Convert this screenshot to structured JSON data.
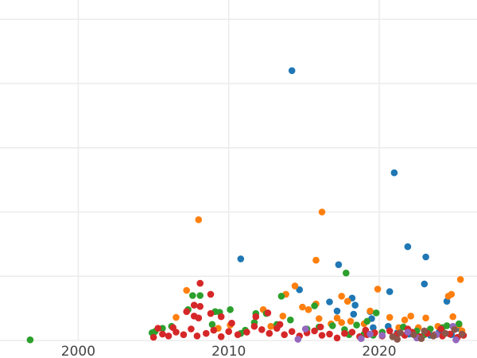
{
  "chart_data": {
    "type": "scatter",
    "title": "",
    "xlabel": "",
    "ylabel": "",
    "xlim": [
      1994.8,
      2026.5
    ],
    "ylim": [
      0,
      530
    ],
    "x_ticks": [
      2000,
      2010,
      2020
    ],
    "x_tick_labels": [
      "2000",
      "2010",
      "2020"
    ],
    "y_gridlines": [
      0,
      100,
      200,
      300,
      400,
      500
    ],
    "grid": true,
    "legend": "none",
    "series": [
      {
        "color": "#1f77b4",
        "points": [
          [
            2014.2,
            420
          ],
          [
            2021.0,
            261
          ],
          [
            2010.8,
            127
          ],
          [
            2021.9,
            146
          ],
          [
            2023.1,
            130
          ],
          [
            2017.3,
            118
          ],
          [
            2020.7,
            76
          ],
          [
            2023.0,
            88
          ],
          [
            2014.7,
            79
          ],
          [
            2016.7,
            60
          ],
          [
            2018.2,
            66
          ],
          [
            2018.4,
            55
          ],
          [
            2024.5,
            61
          ],
          [
            2017.2,
            46
          ],
          [
            2018.3,
            41
          ],
          [
            2019.4,
            45
          ],
          [
            2019.5,
            34
          ],
          [
            2019.6,
            20
          ],
          [
            2020.6,
            22
          ],
          [
            2021.2,
            12
          ],
          [
            2022.0,
            10
          ],
          [
            2023.4,
            8
          ],
          [
            2024.0,
            14
          ],
          [
            2024.8,
            9
          ],
          [
            2025.2,
            19
          ]
        ]
      },
      {
        "color": "#ff7f0e",
        "points": [
          [
            2008.0,
            188
          ],
          [
            2016.2,
            200
          ],
          [
            2015.8,
            125
          ],
          [
            2025.4,
            95
          ],
          [
            2014.4,
            85
          ],
          [
            2019.9,
            80
          ],
          [
            2013.8,
            72
          ],
          [
            2007.2,
            78
          ],
          [
            2017.9,
            61
          ],
          [
            2017.5,
            69
          ],
          [
            2024.6,
            69
          ],
          [
            2024.8,
            72
          ],
          [
            2014.9,
            52
          ],
          [
            2015.3,
            48
          ],
          [
            2015.8,
            57
          ],
          [
            2012.3,
            48
          ],
          [
            2013.6,
            38
          ],
          [
            2006.5,
            36
          ],
          [
            2016.0,
            34
          ],
          [
            2016.8,
            26
          ],
          [
            2017.2,
            35
          ],
          [
            2017.5,
            28
          ],
          [
            2018.1,
            30
          ],
          [
            2019.0,
            26
          ],
          [
            2019.4,
            46
          ],
          [
            2020.7,
            36
          ],
          [
            2021.7,
            32
          ],
          [
            2022.1,
            38
          ],
          [
            2023.1,
            35
          ],
          [
            2023.9,
            22
          ],
          [
            2024.9,
            37
          ],
          [
            2025.3,
            24
          ],
          [
            2010.1,
            24
          ],
          [
            2009.3,
            19
          ],
          [
            2012.8,
            22
          ],
          [
            2021.3,
            20
          ],
          [
            2022.6,
            20
          ],
          [
            2025.5,
            15
          ]
        ]
      },
      {
        "color": "#2ca02c",
        "points": [
          [
            1996.8,
            1
          ],
          [
            2017.8,
            105
          ],
          [
            2013.5,
            69
          ],
          [
            2007.6,
            70
          ],
          [
            2008.1,
            70
          ],
          [
            2015.7,
            54
          ],
          [
            2010.1,
            48
          ],
          [
            2007.3,
            48
          ],
          [
            2009.1,
            45
          ],
          [
            2009.4,
            44
          ],
          [
            2011.8,
            42
          ],
          [
            2012.5,
            42
          ],
          [
            2014.1,
            32
          ],
          [
            2019.8,
            43
          ],
          [
            2016.9,
            23
          ],
          [
            2017.7,
            17
          ],
          [
            2019.0,
            10
          ],
          [
            2020.2,
            13
          ],
          [
            2021.6,
            21
          ],
          [
            2022.5,
            15
          ],
          [
            2023.4,
            18
          ],
          [
            2024.2,
            20
          ],
          [
            2025.3,
            26
          ],
          [
            2005.6,
            19
          ],
          [
            2006.2,
            22
          ],
          [
            2008.9,
            25
          ],
          [
            2011.1,
            16
          ],
          [
            2011.7,
            28
          ],
          [
            2013.2,
            25
          ],
          [
            2016.0,
            21
          ],
          [
            2018.0,
            9
          ],
          [
            2019.6,
            8
          ],
          [
            2020.9,
            6
          ],
          [
            2022.8,
            5
          ],
          [
            2024.5,
            23
          ],
          [
            2004.9,
            12
          ],
          [
            2005.1,
            14
          ],
          [
            2010.8,
            11
          ],
          [
            2018.5,
            24
          ],
          [
            2015.2,
            18
          ],
          [
            2019.2,
            30
          ],
          [
            2023.0,
            9
          ]
        ]
      },
      {
        "color": "#d62728",
        "points": [
          [
            2008.1,
            89
          ],
          [
            2008.8,
            72
          ],
          [
            2007.7,
            55
          ],
          [
            2008.1,
            53
          ],
          [
            2007.2,
            45
          ],
          [
            2007.7,
            38
          ],
          [
            2008.0,
            35
          ],
          [
            2009.5,
            37
          ],
          [
            2008.8,
            42
          ],
          [
            2011.8,
            37
          ],
          [
            2012.6,
            43
          ],
          [
            2010.2,
            27
          ],
          [
            2005.0,
            5
          ],
          [
            2005.6,
            10
          ],
          [
            2006.0,
            7
          ],
          [
            2006.5,
            13
          ],
          [
            2007.0,
            9
          ],
          [
            2007.5,
            18
          ],
          [
            2007.9,
            7
          ],
          [
            2008.5,
            11
          ],
          [
            2009.0,
            16
          ],
          [
            2009.5,
            6
          ],
          [
            2010.0,
            14
          ],
          [
            2010.6,
            9
          ],
          [
            2011.2,
            13
          ],
          [
            2011.7,
            22
          ],
          [
            2012.2,
            17
          ],
          [
            2012.7,
            11
          ],
          [
            2013.2,
            19
          ],
          [
            2013.7,
            9
          ],
          [
            2014.2,
            14
          ],
          [
            2014.7,
            7
          ],
          [
            2015.2,
            12
          ],
          [
            2015.7,
            15
          ],
          [
            2016.2,
            8
          ],
          [
            2016.7,
            10
          ],
          [
            2017.2,
            4
          ],
          [
            2017.7,
            11
          ],
          [
            2018.2,
            13
          ],
          [
            2018.7,
            6
          ],
          [
            2019.2,
            9
          ],
          [
            2019.7,
            12
          ],
          [
            2020.2,
            7
          ],
          [
            2020.7,
            15
          ],
          [
            2021.2,
            10
          ],
          [
            2021.7,
            8
          ],
          [
            2022.2,
            13
          ],
          [
            2022.7,
            6
          ],
          [
            2023.2,
            11
          ],
          [
            2023.7,
            9
          ],
          [
            2024.2,
            7
          ],
          [
            2024.7,
            10
          ],
          [
            2025.2,
            5
          ],
          [
            2025.6,
            8
          ],
          [
            2006.3,
            20
          ],
          [
            2013.4,
            25
          ],
          [
            2016.1,
            21
          ],
          [
            2019.1,
            16
          ],
          [
            2021.9,
            18
          ],
          [
            2024.1,
            18
          ],
          [
            2005.3,
            19
          ]
        ]
      },
      {
        "color": "#9467bd",
        "points": [
          [
            2014.6,
            2
          ],
          [
            2015.1,
            18
          ],
          [
            2019.4,
            10
          ],
          [
            2020.2,
            8
          ],
          [
            2021.9,
            13
          ],
          [
            2022.5,
            4
          ],
          [
            2023.8,
            9
          ],
          [
            2025.1,
            1
          ],
          [
            2024.9,
            22
          ],
          [
            2018.8,
            3
          ]
        ]
      },
      {
        "color": "#8c564b",
        "points": [
          [
            2020.9,
            6
          ],
          [
            2021.4,
            12
          ],
          [
            2022.3,
            9
          ],
          [
            2023.0,
            15
          ],
          [
            2023.6,
            7
          ],
          [
            2024.4,
            11
          ],
          [
            2025.0,
            17
          ],
          [
            2025.5,
            10
          ],
          [
            2021.2,
            2
          ],
          [
            2022.8,
            3
          ]
        ]
      }
    ]
  }
}
